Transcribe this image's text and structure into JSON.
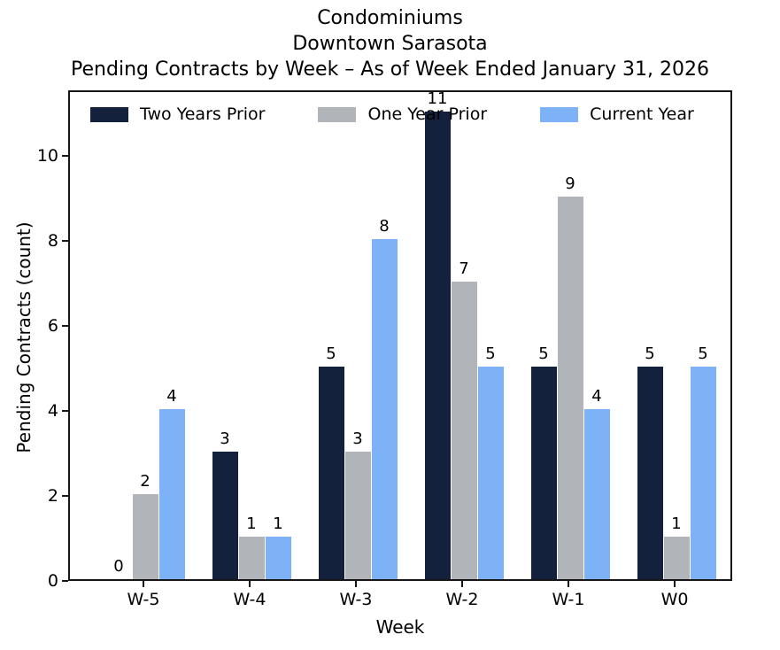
{
  "title": {
    "line1": "Condominiums",
    "line2": "Downtown Sarasota",
    "line3": "Pending Contracts by Week – As of Week Ended January 31, 2026"
  },
  "chart_data": {
    "type": "bar",
    "title": "Condominiums\nDowntown Sarasota\nPending Contracts by Week – As of Week Ended January 31, 2026",
    "categories": [
      "W-5",
      "W-4",
      "W-3",
      "W-2",
      "W-1",
      "W0"
    ],
    "series": [
      {
        "name": "Two Years Prior",
        "color": "#14213d",
        "values": [
          0,
          3,
          5,
          11,
          5,
          5
        ]
      },
      {
        "name": "One Year Prior",
        "color": "#b1b4b8",
        "values": [
          2,
          1,
          3,
          7,
          9,
          1
        ]
      },
      {
        "name": "Current Year",
        "color": "#7db2f7",
        "values": [
          4,
          1,
          8,
          5,
          4,
          5
        ]
      }
    ],
    "xlabel": "Week",
    "ylabel": "Pending Contracts (count)",
    "yticks": [
      0,
      2,
      4,
      6,
      8,
      10
    ],
    "ylim": [
      0,
      11.55
    ],
    "bar_labels_shown": true,
    "legend_position": "top-inside",
    "grid": false,
    "axis_color": "#161616",
    "text_color": "#000000",
    "background_color": "#ffffff"
  }
}
